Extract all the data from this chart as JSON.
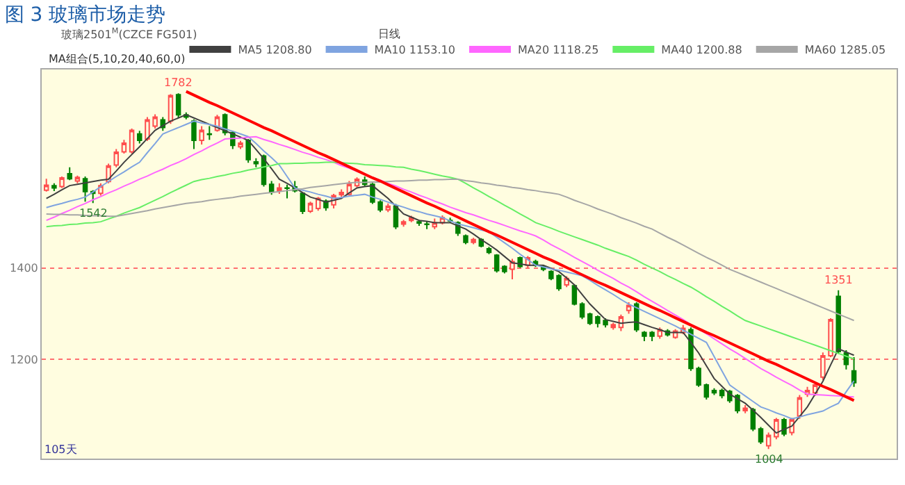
{
  "chart_data": {
    "type": "candlestick",
    "title": "图 3 玻璃市场走势",
    "annotations": [
      "玻璃2501$^{M}$(CZCE FG501)",
      "日线",
      "MA组合(5,10,20,40,60,0)",
      {
        "text": "1782",
        "y": 1782
      },
      {
        "text": "1542",
        "y": 1542
      },
      {
        "text": "1351",
        "y": 1351
      },
      {
        "text": "1004",
        "y": 1004
      },
      "105天"
    ],
    "categories": [
      null,
      null,
      null,
      null,
      null,
      null,
      null,
      null,
      null,
      null,
      null,
      null,
      null,
      null,
      null,
      null,
      null,
      null,
      null,
      null,
      null,
      null,
      null,
      null,
      null,
      null,
      null,
      null,
      null,
      null,
      null,
      null,
      null,
      null,
      null,
      null,
      null,
      null,
      null,
      null,
      null,
      null,
      null,
      null,
      null,
      null,
      null,
      null,
      null,
      null,
      null,
      null,
      null,
      null,
      null,
      null,
      null,
      null,
      null,
      null,
      null,
      null,
      null,
      null,
      null,
      null,
      null,
      null,
      null,
      null,
      null,
      null,
      null,
      null,
      null,
      null,
      null,
      null,
      null,
      null,
      null,
      null,
      null,
      null,
      null,
      null,
      null,
      null,
      null,
      null,
      null,
      null,
      null,
      null,
      null,
      null,
      null,
      null,
      null,
      null,
      null,
      null,
      null,
      null,
      null
    ],
    "ohlc": [
      [
        1570,
        1595,
        1567,
        1581
      ],
      [
        1580,
        1585,
        1568,
        1575
      ],
      [
        1578,
        1600,
        1575,
        1597
      ],
      [
        1606,
        1620,
        1592,
        1595
      ],
      [
        1590,
        1602,
        1585,
        1598
      ],
      [
        1595,
        1600,
        1545,
        1567
      ],
      [
        1567,
        1570,
        1542,
        1563
      ],
      [
        1563,
        1585,
        1558,
        1580
      ],
      [
        1589,
        1628,
        1585,
        1623
      ],
      [
        1625,
        1660,
        1620,
        1653
      ],
      [
        1654,
        1680,
        1650,
        1673
      ],
      [
        1654,
        1705,
        1650,
        1701
      ],
      [
        1693,
        1700,
        1672,
        1679
      ],
      [
        1682,
        1730,
        1678,
        1724
      ],
      [
        1710,
        1736,
        1705,
        1730
      ],
      [
        1724,
        1730,
        1700,
        1707
      ],
      [
        1721,
        1780,
        1715,
        1777
      ],
      [
        1779,
        1782,
        1728,
        1735
      ],
      [
        1735,
        1740,
        1725,
        1730
      ],
      [
        1721,
        1725,
        1660,
        1679
      ],
      [
        1679,
        1710,
        1670,
        1701
      ],
      [
        1693,
        1710,
        1680,
        1692
      ],
      [
        1701,
        1735,
        1698,
        1730
      ],
      [
        1735,
        1738,
        1690,
        1696
      ],
      [
        1696,
        1700,
        1660,
        1668
      ],
      [
        1665,
        1678,
        1660,
        1673
      ],
      [
        1679,
        1682,
        1630,
        1637
      ],
      [
        1632,
        1640,
        1620,
        1628
      ],
      [
        1645,
        1648,
        1578,
        1583
      ],
      [
        1583,
        1590,
        1560,
        1566
      ],
      [
        1569,
        1585,
        1562,
        1575
      ],
      [
        1575,
        1582,
        1552,
        1574
      ],
      [
        1577,
        1590,
        1565,
        1569
      ],
      [
        1563,
        1565,
        1518,
        1524
      ],
      [
        1524,
        1545,
        1520,
        1541
      ],
      [
        1530,
        1555,
        1525,
        1552
      ],
      [
        1546,
        1550,
        1525,
        1532
      ],
      [
        1538,
        1562,
        1530,
        1558
      ],
      [
        1560,
        1572,
        1555,
        1565
      ],
      [
        1561,
        1590,
        1558,
        1583
      ],
      [
        1580,
        1598,
        1576,
        1594
      ],
      [
        1592,
        1600,
        1578,
        1583
      ],
      [
        1583,
        1586,
        1540,
        1544
      ],
      [
        1544,
        1548,
        1522,
        1527
      ],
      [
        1527,
        1541,
        1522,
        1535
      ],
      [
        1535,
        1540,
        1485,
        1490
      ],
      [
        1496,
        1505,
        1490,
        1501
      ],
      [
        1504,
        1514,
        1500,
        1510
      ],
      [
        1501,
        1505,
        1492,
        1498
      ],
      [
        1496,
        1502,
        1485,
        1495
      ],
      [
        1490,
        1508,
        1485,
        1499
      ],
      [
        1499,
        1515,
        1495,
        1510
      ],
      [
        1504,
        1510,
        1498,
        1503
      ],
      [
        1499,
        1502,
        1470,
        1476
      ],
      [
        1470,
        1473,
        1452,
        1456
      ],
      [
        1456,
        1466,
        1452,
        1462
      ],
      [
        1462,
        1465,
        1445,
        1448
      ],
      [
        1442,
        1446,
        1430,
        1434
      ],
      [
        1428,
        1430,
        1390,
        1394
      ],
      [
        1403,
        1406,
        1388,
        1392
      ],
      [
        1397,
        1420,
        1375,
        1414
      ],
      [
        1422,
        1425,
        1400,
        1403
      ],
      [
        1406,
        1426,
        1400,
        1422
      ],
      [
        1414,
        1418,
        1402,
        1406
      ],
      [
        1403,
        1406,
        1393,
        1397
      ],
      [
        1392,
        1395,
        1373,
        1377
      ],
      [
        1383,
        1386,
        1350,
        1355
      ],
      [
        1363,
        1382,
        1358,
        1377
      ],
      [
        1361,
        1364,
        1318,
        1321
      ],
      [
        1321,
        1325,
        1288,
        1293
      ],
      [
        1299,
        1302,
        1275,
        1279
      ],
      [
        1293,
        1296,
        1270,
        1279
      ],
      [
        1285,
        1290,
        1270,
        1276
      ],
      [
        1270,
        1280,
        1265,
        1276
      ],
      [
        1270,
        1298,
        1262,
        1293
      ],
      [
        1307,
        1325,
        1300,
        1318
      ],
      [
        1321,
        1325,
        1260,
        1265
      ],
      [
        1259,
        1262,
        1240,
        1251
      ],
      [
        1259,
        1262,
        1240,
        1251
      ],
      [
        1251,
        1270,
        1245,
        1265
      ],
      [
        1262,
        1266,
        1250,
        1254
      ],
      [
        1248,
        1266,
        1245,
        1262
      ],
      [
        1259,
        1275,
        1255,
        1268
      ],
      [
        1265,
        1270,
        1175,
        1180
      ],
      [
        1180,
        1184,
        1140,
        1144
      ],
      [
        1144,
        1147,
        1112,
        1118
      ],
      [
        1132,
        1137,
        1122,
        1127
      ],
      [
        1132,
        1136,
        1115,
        1121
      ],
      [
        1130,
        1133,
        1105,
        1110
      ],
      [
        1121,
        1124,
        1082,
        1088
      ],
      [
        1088,
        1100,
        1082,
        1093
      ],
      [
        1090,
        1094,
        1043,
        1048
      ],
      [
        1048,
        1052,
        1015,
        1020
      ],
      [
        1011,
        1040,
        1004,
        1034
      ],
      [
        1031,
        1072,
        1025,
        1068
      ],
      [
        1068,
        1072,
        1032,
        1037
      ],
      [
        1040,
        1072,
        1034,
        1068
      ],
      [
        1076,
        1122,
        1070,
        1116
      ],
      [
        1124,
        1140,
        1118,
        1132
      ],
      [
        1127,
        1150,
        1120,
        1144
      ],
      [
        1161,
        1215,
        1155,
        1208
      ],
      [
        1208,
        1290,
        1205,
        1287
      ],
      [
        1338,
        1351,
        1212,
        1217
      ],
      [
        1214,
        1220,
        1178,
        1189
      ],
      [
        1175,
        1205,
        1140,
        1149
      ]
    ],
    "series": [
      {
        "type": "line",
        "name": "MA5 1208.80",
        "color": "#404040",
        "values": [
          1552,
          1561,
          1571,
          1580,
          1583,
          1586,
          1589,
          1592,
          1594,
          1612,
          1631,
          1648,
          1665,
          1683,
          1701,
          1711,
          1721,
          1728,
          1735,
          1728,
          1721,
          1714,
          1707,
          1700,
          1693,
          1686,
          1679,
          1659,
          1639,
          1617,
          1594,
          1585,
          1575,
          1565,
          1555,
          1550,
          1544,
          1548,
          1552,
          1564,
          1575,
          1578,
          1580,
          1566,
          1552,
          1535,
          1518,
          1511,
          1504,
          1502,
          1499,
          1499,
          1499,
          1492,
          1485,
          1474,
          1462,
          1451,
          1439,
          1425,
          1411,
          1409,
          1406,
          1406,
          1406,
          1399,
          1392,
          1378,
          1363,
          1342,
          1321,
          1304,
          1287,
          1283,
          1279,
          1281,
          1282,
          1276,
          1270,
          1265,
          1259,
          1259,
          1259,
          1237,
          1214,
          1186,
          1158,
          1141,
          1124,
          1114,
          1104,
          1089,
          1073,
          1056,
          1039,
          1047,
          1054,
          1075,
          1096,
          1124,
          1152,
          1188,
          1223,
          1216,
          1209
        ]
      },
      {
        "type": "line",
        "name": "MA10 1153.10",
        "color": "#7fa4e0",
        "values": [
          1532,
          1537,
          1541,
          1546,
          1550,
          1555,
          1566,
          1578,
          1589,
          1600,
          1610,
          1621,
          1631,
          1652,
          1672,
          1693,
          1700,
          1707,
          1714,
          1721,
          1717,
          1714,
          1710,
          1704,
          1699,
          1693,
          1687,
          1672,
          1656,
          1641,
          1625,
          1600,
          1575,
          1570,
          1566,
          1561,
          1557,
          1552,
          1554,
          1557,
          1559,
          1561,
          1555,
          1550,
          1544,
          1538,
          1533,
          1527,
          1523,
          1518,
          1514,
          1510,
          1503,
          1496,
          1492,
          1488,
          1483,
          1479,
          1467,
          1455,
          1443,
          1430,
          1418,
          1406,
          1402,
          1398,
          1395,
          1391,
          1387,
          1383,
          1373,
          1362,
          1352,
          1342,
          1331,
          1321,
          1313,
          1305,
          1297,
          1289,
          1281,
          1273,
          1264,
          1255,
          1246,
          1237,
          1206,
          1175,
          1144,
          1132,
          1120,
          1108,
          1096,
          1090,
          1083,
          1077,
          1070,
          1074,
          1079,
          1083,
          1087,
          1096,
          1104,
          1129,
          1153
        ]
      },
      {
        "type": "line",
        "name": "MA20 1118.25",
        "color": "#ff66ff",
        "values": [
          1504,
          1511,
          1519,
          1526,
          1534,
          1541,
          1549,
          1556,
          1564,
          1571,
          1579,
          1586,
          1594,
          1601,
          1609,
          1616,
          1624,
          1631,
          1639,
          1648,
          1656,
          1665,
          1673,
          1682,
          1683,
          1684,
          1686,
          1687,
          1681,
          1676,
          1670,
          1665,
          1659,
          1653,
          1648,
          1642,
          1637,
          1631,
          1624,
          1618,
          1611,
          1605,
          1598,
          1592,
          1585,
          1579,
          1572,
          1566,
          1559,
          1553,
          1546,
          1540,
          1533,
          1527,
          1521,
          1516,
          1510,
          1504,
          1499,
          1493,
          1487,
          1481,
          1476,
          1470,
          1461,
          1451,
          1442,
          1433,
          1423,
          1414,
          1405,
          1395,
          1386,
          1377,
          1367,
          1358,
          1348,
          1337,
          1327,
          1317,
          1307,
          1297,
          1287,
          1276,
          1266,
          1256,
          1245,
          1234,
          1223,
          1213,
          1202,
          1191,
          1180,
          1171,
          1161,
          1152,
          1143,
          1133,
          1124,
          1123,
          1122,
          1121,
          1120,
          1119,
          1118
        ]
      },
      {
        "type": "line",
        "name": "MA40 1200.88",
        "color": "#66ee66",
        "values": [
          1490,
          1492,
          1493,
          1495,
          1496,
          1498,
          1499,
          1501,
          1507,
          1513,
          1520,
          1526,
          1532,
          1540,
          1548,
          1556,
          1565,
          1573,
          1581,
          1589,
          1593,
          1596,
          1600,
          1603,
          1607,
          1610,
          1614,
          1617,
          1621,
          1624,
          1628,
          1628,
          1629,
          1629,
          1630,
          1630,
          1631,
          1631,
          1630,
          1629,
          1628,
          1626,
          1625,
          1624,
          1623,
          1621,
          1620,
          1616,
          1613,
          1609,
          1605,
          1601,
          1598,
          1594,
          1585,
          1575,
          1566,
          1556,
          1547,
          1537,
          1528,
          1518,
          1509,
          1499,
          1493,
          1487,
          1480,
          1474,
          1468,
          1462,
          1456,
          1450,
          1443,
          1437,
          1431,
          1425,
          1417,
          1408,
          1400,
          1392,
          1383,
          1375,
          1366,
          1358,
          1348,
          1337,
          1327,
          1316,
          1306,
          1295,
          1285,
          1279,
          1273,
          1267,
          1261,
          1255,
          1249,
          1243,
          1237,
          1231,
          1225,
          1219,
          1213,
          1207,
          1201
        ]
      },
      {
        "type": "line",
        "name": "MA60 1285.05",
        "color": "#a6a6a6",
        "values": [
          1518,
          1517,
          1517,
          1516,
          1516,
          1515,
          1514,
          1514,
          1513,
          1513,
          1516,
          1519,
          1522,
          1525,
          1529,
          1532,
          1535,
          1538,
          1541,
          1543,
          1545,
          1548,
          1550,
          1552,
          1554,
          1557,
          1559,
          1561,
          1563,
          1565,
          1567,
          1569,
          1571,
          1573,
          1576,
          1578,
          1580,
          1582,
          1584,
          1586,
          1587,
          1587,
          1588,
          1588,
          1589,
          1590,
          1590,
          1591,
          1592,
          1592,
          1593,
          1593,
          1594,
          1594,
          1591,
          1589,
          1586,
          1584,
          1581,
          1579,
          1576,
          1574,
          1571,
          1569,
          1566,
          1564,
          1561,
          1555,
          1548,
          1542,
          1536,
          1529,
          1523,
          1517,
          1510,
          1504,
          1498,
          1491,
          1485,
          1476,
          1467,
          1459,
          1450,
          1441,
          1432,
          1423,
          1415,
          1406,
          1397,
          1390,
          1383,
          1376,
          1369,
          1362,
          1355,
          1348,
          1341,
          1334,
          1327,
          1320,
          1313,
          1306,
          1299,
          1292,
          1285
        ]
      },
      {
        "type": "line",
        "color": "#ff0000",
        "values": [
          null,
          null,
          null,
          null,
          null,
          null,
          null,
          null,
          null,
          null,
          null,
          null,
          null,
          null,
          null,
          null,
          null,
          null,
          1786,
          1778,
          1770,
          1762,
          1755,
          1747,
          1739,
          1731,
          1723,
          1715,
          1707,
          1700,
          1692,
          1684,
          1676,
          1668,
          1660,
          1652,
          1645,
          1637,
          1629,
          1621,
          1613,
          1605,
          1597,
          1590,
          1582,
          1574,
          1566,
          1558,
          1550,
          1542,
          1535,
          1527,
          1519,
          1511,
          1503,
          1495,
          1487,
          1479,
          1472,
          1464,
          1456,
          1448,
          1440,
          1432,
          1424,
          1417,
          1409,
          1401,
          1393,
          1385,
          1377,
          1369,
          1362,
          1354,
          1346,
          1338,
          1330,
          1322,
          1314,
          1307,
          1299,
          1291,
          1283,
          1275,
          1267,
          1259,
          1252,
          1244,
          1236,
          1228,
          1220,
          1212,
          1204,
          1196,
          1189,
          1181,
          1173,
          1165,
          1157,
          1149,
          1141,
          1134,
          1126,
          1118,
          1110
        ]
      }
    ],
    "ylim": [
      983,
      1834
    ],
    "yticks": [
      1400,
      1200
    ],
    "tick_labels": "y",
    "grid": "y",
    "legend": "top",
    "line_style": "solid"
  }
}
